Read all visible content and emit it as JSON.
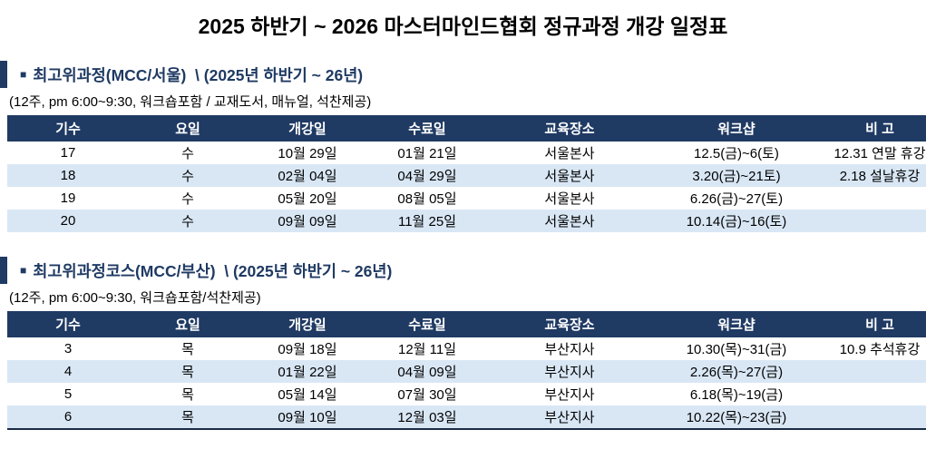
{
  "page": {
    "title": "2025 하반기 ~ 2026 마스터마인드협회 정규과정 개강 일정표"
  },
  "colors": {
    "header_navy": "#1f3a63",
    "stripe_blue": "#d9e7f5",
    "heading_text": "#1f3a63",
    "table_bottom_border": "#1c2b45"
  },
  "sections": [
    {
      "marker": "■",
      "heading": "최고위과정(MCC/서울)  \\ (2025년 하반기 ~ 26년)",
      "subtitle": "(12주, pm 6:00~9:30, 워크숍포함 / 교재도서, 매뉴얼, 석찬제공)",
      "table": {
        "columns": [
          "기수",
          "요일",
          "개강일",
          "수료일",
          "교육장소",
          "워크샵",
          "비 고"
        ],
        "rows": [
          [
            "17",
            "수",
            "10월 29일",
            "01월 21일",
            "서울본사",
            "12.5(금)~6(토)",
            "12.31 연말 휴강"
          ],
          [
            "18",
            "수",
            "02월 04일",
            "04월 29일",
            "서울본사",
            "3.20(금)~21토)",
            "2.18 설날휴강"
          ],
          [
            "19",
            "수",
            "05월 20일",
            "08월 05일",
            "서울본사",
            "6.26(금)~27(토)",
            ""
          ],
          [
            "20",
            "수",
            "09월 09일",
            "11월 25일",
            "서울본사",
            "10.14(금)~16(토)",
            ""
          ]
        ]
      }
    },
    {
      "marker": "■",
      "heading": "최고위과정코스(MCC/부산)  \\ (2025년 하반기 ~ 26년)",
      "subtitle": "(12주, pm 6:00~9:30, 워크숍포함/석찬제공)",
      "table": {
        "columns": [
          "기수",
          "요일",
          "개강일",
          "수료일",
          "교육장소",
          "워크샵",
          "비 고"
        ],
        "rows": [
          [
            "3",
            "목",
            "09월 18일",
            "12월 11일",
            "부산지사",
            "10.30(목)~31(금)",
            "10.9 추석휴강"
          ],
          [
            "4",
            "목",
            "01월 22일",
            "04월 09일",
            "부산지사",
            "2.26(목)~27(금)",
            ""
          ],
          [
            "5",
            "목",
            "05월 14일",
            "07월 30일",
            "부산지사",
            "6.18(목)~19(금)",
            ""
          ],
          [
            "6",
            "목",
            "09월 10일",
            "12월 03일",
            "부산지사",
            "10.22(목)~23(금)",
            ""
          ]
        ]
      }
    }
  ]
}
